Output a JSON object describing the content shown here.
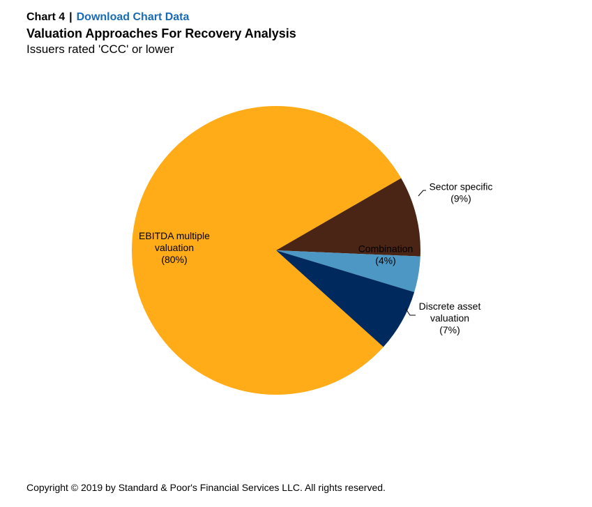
{
  "header": {
    "chart_number": "Chart 4",
    "separator": "|",
    "download_link": "Download Chart Data",
    "title": "Valuation Approaches For Recovery Analysis",
    "subtitle": "Issuers rated 'CCC' or lower"
  },
  "colors": {
    "link": "#1a6bb5"
  },
  "chart_data": {
    "type": "pie",
    "title": "Valuation Approaches For Recovery Analysis",
    "subtitle": "Issuers rated 'CCC' or lower",
    "slices": [
      {
        "name": "EBITDA multiple valuation",
        "label_lines": [
          "EBITDA multiple",
          "valuation"
        ],
        "value": 80,
        "value_label": "(80%)",
        "color": "#ffac18"
      },
      {
        "name": "Sector specific",
        "label_lines": [
          "Sector specific"
        ],
        "value": 9,
        "value_label": "(9%)",
        "color": "#4a2415"
      },
      {
        "name": "Combination",
        "label_lines": [
          "Combination"
        ],
        "value": 4,
        "value_label": "(4%)",
        "color": "#4d97c4"
      },
      {
        "name": "Discrete asset valuation",
        "label_lines": [
          "Discrete asset",
          "valuation"
        ],
        "value": 7,
        "value_label": "(7%)",
        "color": "#002a5e"
      }
    ]
  },
  "footer": {
    "copyright": "Copyright © 2019 by Standard & Poor's Financial Services LLC. All rights reserved."
  }
}
